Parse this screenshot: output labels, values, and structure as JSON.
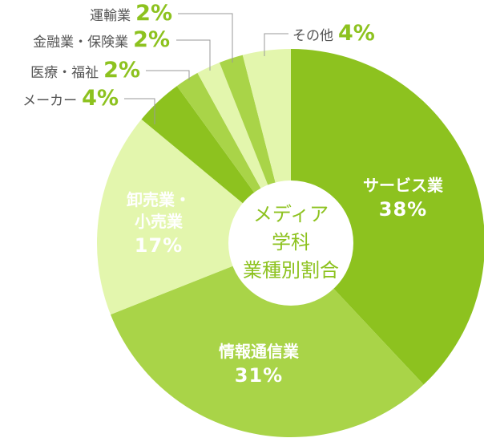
{
  "chart_data": {
    "type": "donut",
    "title": "メディア\n学科\n業種別割合",
    "categories": [
      "サービス業",
      "情報通信業",
      "卸売業・\n小売業",
      "メーカー",
      "医療・福祉",
      "金融業・保険業",
      "運輸業",
      "その他"
    ],
    "values": [
      38,
      31,
      17,
      4,
      2,
      2,
      2,
      4
    ],
    "value_labels": [
      "38%",
      "31%",
      "17%",
      "4%",
      "2%",
      "2%",
      "2%",
      "4%"
    ],
    "colors": [
      "#8dc21f",
      "#a9d448",
      "#e3f6ad",
      "#8dc21f",
      "#a9d448",
      "#e3f6ad",
      "#a9d448",
      "#e3f6ad"
    ]
  }
}
